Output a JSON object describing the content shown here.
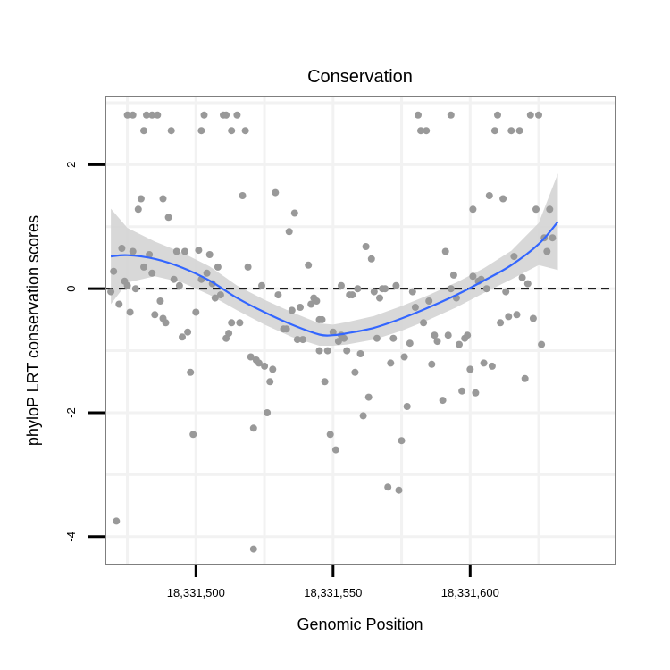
{
  "chart_data": {
    "type": "scatter",
    "title": "Conservation",
    "xlabel": "Genomic Position",
    "ylabel": "phyloP LRT conservation scores",
    "xlim": [
      18331467,
      18331653
    ],
    "ylim": [
      -4.45,
      3.1
    ],
    "x_ticks": [
      18331500,
      18331550,
      18331600
    ],
    "x_tick_labels": [
      "18,331,500",
      "18,331,550",
      "18,331,600"
    ],
    "y_ticks": [
      -4,
      -2,
      0,
      2
    ],
    "y_tick_labels": [
      "-4",
      "-2",
      "0",
      "2"
    ],
    "reference_line": {
      "y": 0,
      "style": "dashed"
    },
    "grid": true,
    "colors": {
      "points": "#999999",
      "smooth_line": "#3366ff",
      "ribbon": "#d4d4d4",
      "panel_border": "#7f7f7f",
      "grid": "#f2f2f2",
      "reference": "#000000"
    },
    "series": [
      {
        "name": "scores",
        "points": [
          [
            18331469,
            -0.05
          ],
          [
            18331470,
            0.28
          ],
          [
            18331471,
            -3.75
          ],
          [
            18331472,
            -0.25
          ],
          [
            18331473,
            0.65
          ],
          [
            18331474,
            0.12
          ],
          [
            18331475,
            2.8
          ],
          [
            18331475,
            0.05
          ],
          [
            18331476,
            -0.38
          ],
          [
            18331477,
            0.6
          ],
          [
            18331477,
            2.8
          ],
          [
            18331478,
            0.0
          ],
          [
            18331479,
            1.28
          ],
          [
            18331480,
            1.45
          ],
          [
            18331481,
            0.35
          ],
          [
            18331481,
            2.55
          ],
          [
            18331482,
            2.8
          ],
          [
            18331483,
            0.55
          ],
          [
            18331484,
            0.25
          ],
          [
            18331484,
            2.8
          ],
          [
            18331485,
            -0.42
          ],
          [
            18331486,
            2.8
          ],
          [
            18331487,
            -0.2
          ],
          [
            18331488,
            -0.48
          ],
          [
            18331488,
            1.45
          ],
          [
            18331489,
            -0.55
          ],
          [
            18331490,
            1.15
          ],
          [
            18331491,
            2.55
          ],
          [
            18331492,
            0.15
          ],
          [
            18331493,
            0.6
          ],
          [
            18331494,
            0.05
          ],
          [
            18331495,
            -0.78
          ],
          [
            18331496,
            0.6
          ],
          [
            18331497,
            -0.7
          ],
          [
            18331498,
            -1.35
          ],
          [
            18331499,
            -2.35
          ],
          [
            18331500,
            -0.38
          ],
          [
            18331501,
            0.62
          ],
          [
            18331502,
            0.15
          ],
          [
            18331502,
            2.55
          ],
          [
            18331503,
            2.8
          ],
          [
            18331504,
            0.25
          ],
          [
            18331505,
            0.55
          ],
          [
            18331506,
            0.08
          ],
          [
            18331507,
            -0.15
          ],
          [
            18331508,
            0.35
          ],
          [
            18331509,
            -0.1
          ],
          [
            18331510,
            2.8
          ],
          [
            18331511,
            2.8
          ],
          [
            18331511,
            -0.8
          ],
          [
            18331512,
            -0.72
          ],
          [
            18331513,
            -0.55
          ],
          [
            18331513,
            2.55
          ],
          [
            18331515,
            2.8
          ],
          [
            18331516,
            -0.55
          ],
          [
            18331517,
            1.5
          ],
          [
            18331518,
            2.55
          ],
          [
            18331519,
            0.35
          ],
          [
            18331520,
            -1.1
          ],
          [
            18331521,
            -2.25
          ],
          [
            18331521,
            -4.2
          ],
          [
            18331522,
            -1.15
          ],
          [
            18331523,
            -1.2
          ],
          [
            18331524,
            0.05
          ],
          [
            18331525,
            -1.25
          ],
          [
            18331526,
            -2.0
          ],
          [
            18331527,
            -1.5
          ],
          [
            18331528,
            -1.3
          ],
          [
            18331529,
            1.55
          ],
          [
            18331530,
            -0.1
          ],
          [
            18331532,
            -0.65
          ],
          [
            18331533,
            -0.65
          ],
          [
            18331534,
            0.92
          ],
          [
            18331535,
            -0.35
          ],
          [
            18331536,
            1.22
          ],
          [
            18331537,
            -0.82
          ],
          [
            18331538,
            -0.3
          ],
          [
            18331539,
            -0.82
          ],
          [
            18331541,
            0.38
          ],
          [
            18331542,
            -0.25
          ],
          [
            18331543,
            -0.15
          ],
          [
            18331544,
            -0.2
          ],
          [
            18331545,
            -1.0
          ],
          [
            18331545,
            -0.5
          ],
          [
            18331546,
            -0.5
          ],
          [
            18331547,
            -1.5
          ],
          [
            18331548,
            -1.0
          ],
          [
            18331549,
            -2.35
          ],
          [
            18331550,
            -0.7
          ],
          [
            18331551,
            -2.6
          ],
          [
            18331552,
            -0.85
          ],
          [
            18331553,
            0.05
          ],
          [
            18331553,
            -0.75
          ],
          [
            18331554,
            -0.8
          ],
          [
            18331555,
            -1.0
          ],
          [
            18331556,
            -0.1
          ],
          [
            18331557,
            -0.1
          ],
          [
            18331558,
            -1.35
          ],
          [
            18331559,
            0.0
          ],
          [
            18331560,
            -1.05
          ],
          [
            18331561,
            -2.05
          ],
          [
            18331562,
            0.68
          ],
          [
            18331563,
            -1.75
          ],
          [
            18331564,
            0.48
          ],
          [
            18331565,
            -0.05
          ],
          [
            18331566,
            -0.8
          ],
          [
            18331567,
            -0.15
          ],
          [
            18331568,
            0.0
          ],
          [
            18331569,
            0.0
          ],
          [
            18331570,
            -3.2
          ],
          [
            18331571,
            -1.2
          ],
          [
            18331572,
            -0.8
          ],
          [
            18331573,
            0.05
          ],
          [
            18331574,
            -3.25
          ],
          [
            18331575,
            -2.45
          ],
          [
            18331576,
            -1.1
          ],
          [
            18331577,
            -1.9
          ],
          [
            18331578,
            -0.88
          ],
          [
            18331579,
            -0.05
          ],
          [
            18331580,
            -0.3
          ],
          [
            18331581,
            2.8
          ],
          [
            18331582,
            2.55
          ],
          [
            18331583,
            -0.55
          ],
          [
            18331584,
            2.55
          ],
          [
            18331585,
            -0.2
          ],
          [
            18331586,
            -1.22
          ],
          [
            18331587,
            -0.75
          ],
          [
            18331588,
            -0.85
          ],
          [
            18331590,
            -1.8
          ],
          [
            18331591,
            0.6
          ],
          [
            18331592,
            -0.75
          ],
          [
            18331593,
            0.0
          ],
          [
            18331593,
            2.8
          ],
          [
            18331594,
            0.22
          ],
          [
            18331595,
            -0.15
          ],
          [
            18331596,
            -0.9
          ],
          [
            18331597,
            -1.65
          ],
          [
            18331598,
            -0.8
          ],
          [
            18331599,
            -0.75
          ],
          [
            18331600,
            -1.3
          ],
          [
            18331601,
            1.28
          ],
          [
            18331601,
            0.2
          ],
          [
            18331602,
            -1.68
          ],
          [
            18331603,
            0.12
          ],
          [
            18331604,
            0.15
          ],
          [
            18331605,
            -1.2
          ],
          [
            18331606,
            0.0
          ],
          [
            18331607,
            1.5
          ],
          [
            18331608,
            -1.25
          ],
          [
            18331609,
            2.55
          ],
          [
            18331610,
            2.8
          ],
          [
            18331611,
            -0.55
          ],
          [
            18331612,
            1.45
          ],
          [
            18331613,
            -0.05
          ],
          [
            18331614,
            -0.45
          ],
          [
            18331615,
            2.55
          ],
          [
            18331616,
            0.52
          ],
          [
            18331617,
            -0.42
          ],
          [
            18331618,
            2.55
          ],
          [
            18331619,
            0.18
          ],
          [
            18331620,
            -1.45
          ],
          [
            18331621,
            0.08
          ],
          [
            18331622,
            2.8
          ],
          [
            18331623,
            -0.48
          ],
          [
            18331624,
            1.28
          ],
          [
            18331625,
            2.8
          ],
          [
            18331626,
            -0.9
          ],
          [
            18331627,
            0.82
          ],
          [
            18331628,
            0.6
          ],
          [
            18331629,
            1.28
          ],
          [
            18331630,
            0.82
          ]
        ]
      }
    ],
    "smooth": {
      "method": "loess",
      "x": [
        18331469,
        18331475,
        18331485,
        18331495,
        18331505,
        18331515,
        18331525,
        18331535,
        18331545,
        18331550,
        18331555,
        18331565,
        18331575,
        18331585,
        18331595,
        18331605,
        18331615,
        18331625,
        18331632
      ],
      "y": [
        0.52,
        0.54,
        0.48,
        0.34,
        0.13,
        -0.15,
        -0.38,
        -0.58,
        -0.74,
        -0.75,
        -0.72,
        -0.63,
        -0.48,
        -0.3,
        -0.1,
        0.13,
        0.38,
        0.72,
        1.08
      ],
      "ci_lower": [
        -0.25,
        0.1,
        0.2,
        0.1,
        -0.1,
        -0.35,
        -0.58,
        -0.78,
        -0.92,
        -0.92,
        -0.9,
        -0.82,
        -0.68,
        -0.5,
        -0.3,
        -0.07,
        0.15,
        0.38,
        0.3
      ],
      "ci_upper": [
        1.29,
        0.98,
        0.76,
        0.58,
        0.36,
        0.05,
        -0.18,
        -0.38,
        -0.56,
        -0.58,
        -0.54,
        -0.44,
        -0.28,
        -0.1,
        0.1,
        0.33,
        0.61,
        1.06,
        1.86
      ]
    }
  }
}
